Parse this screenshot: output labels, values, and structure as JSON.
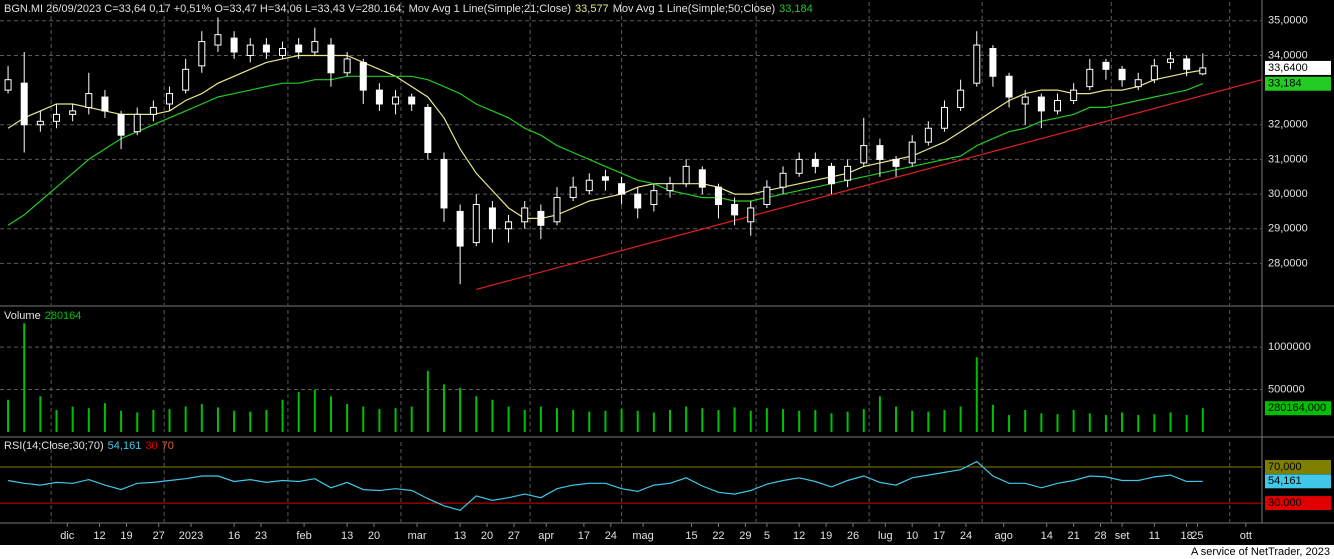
{
  "chart_data": [
    {
      "type": "candlestick",
      "title": "BGN.MI 26/09/2023 C=33,64 0,17 +0,51% O=33,47 H=34,06 L=33,43 V=280.164;",
      "x": [
        0,
        3,
        6,
        9,
        12,
        15,
        18,
        21,
        24,
        27,
        30,
        33,
        36,
        39,
        42,
        45,
        48,
        51,
        54,
        57,
        60,
        63,
        66,
        69,
        72,
        75,
        78,
        81,
        84,
        87,
        90,
        93,
        96,
        99,
        102,
        105,
        108,
        111,
        114,
        117,
        120,
        123,
        126,
        129,
        132,
        135,
        138,
        141,
        144,
        147,
        150,
        153,
        156,
        159,
        162,
        165,
        168,
        171,
        174,
        177,
        180,
        183,
        186,
        189,
        192,
        195,
        198,
        201,
        204,
        207,
        210,
        213,
        216,
        219,
        222
      ],
      "xlim": [
        -1.5,
        233
      ],
      "open": [
        33.0,
        33.2,
        32.0,
        32.1,
        32.3,
        32.5,
        32.8,
        32.3,
        31.8,
        32.3,
        32.6,
        33.0,
        33.7,
        34.3,
        34.5,
        34.0,
        34.3,
        34.0,
        34.3,
        34.1,
        34.3,
        33.5,
        33.8,
        33.0,
        32.6,
        32.8,
        32.5,
        31.0,
        29.5,
        28.6,
        29.6,
        29.0,
        29.2,
        29.5,
        29.2,
        29.9,
        30.1,
        30.5,
        30.3,
        30.0,
        29.7,
        30.1,
        30.3,
        30.7,
        30.2,
        29.7,
        29.2,
        29.7,
        30.2,
        30.6,
        31.0,
        30.8,
        30.4,
        30.9,
        31.4,
        31.0,
        30.9,
        31.5,
        31.9,
        32.5,
        33.2,
        34.2,
        33.4,
        32.6,
        32.8,
        32.4,
        32.7,
        33.1,
        33.8,
        33.6,
        33.1,
        33.3,
        33.8,
        33.9,
        33.47
      ],
      "high": [
        33.7,
        34.1,
        32.4,
        32.6,
        32.6,
        33.5,
        33.0,
        32.4,
        32.5,
        32.7,
        33.1,
        33.9,
        34.7,
        35.1,
        34.7,
        34.5,
        34.5,
        34.4,
        34.5,
        34.8,
        34.5,
        34.1,
        33.9,
        33.2,
        33.0,
        32.9,
        32.6,
        31.2,
        29.7,
        30.0,
        29.8,
        29.4,
        29.8,
        29.7,
        30.2,
        30.5,
        30.6,
        30.7,
        30.5,
        30.2,
        30.3,
        30.5,
        31.0,
        30.8,
        30.3,
        29.9,
        29.8,
        30.4,
        30.8,
        31.2,
        31.2,
        30.9,
        31.0,
        32.2,
        31.6,
        31.1,
        31.7,
        32.1,
        32.7,
        33.3,
        34.7,
        34.3,
        33.5,
        33.0,
        32.9,
        32.9,
        33.2,
        33.9,
        33.9,
        33.7,
        33.5,
        33.9,
        34.1,
        34.0,
        34.06
      ],
      "low": [
        32.9,
        31.2,
        31.8,
        31.9,
        32.1,
        32.3,
        32.2,
        31.3,
        31.7,
        32.1,
        32.4,
        32.9,
        33.5,
        34.1,
        33.9,
        33.8,
        33.9,
        33.9,
        33.9,
        34.0,
        33.1,
        33.4,
        32.6,
        32.4,
        32.3,
        32.4,
        31.0,
        29.2,
        27.4,
        28.5,
        28.6,
        28.6,
        29.0,
        28.7,
        29.1,
        29.8,
        30.0,
        30.1,
        29.7,
        29.3,
        29.5,
        29.9,
        30.2,
        30.0,
        29.3,
        29.1,
        28.8,
        29.6,
        30.0,
        30.5,
        30.6,
        30.0,
        30.2,
        30.8,
        30.5,
        30.5,
        30.8,
        31.4,
        31.8,
        32.4,
        33.1,
        33.1,
        32.5,
        32.0,
        31.9,
        32.3,
        32.6,
        33.0,
        33.3,
        33.1,
        33.0,
        33.2,
        33.6,
        33.4,
        33.43
      ],
      "close": [
        33.3,
        32.0,
        32.1,
        32.3,
        32.4,
        32.9,
        32.4,
        31.7,
        32.3,
        32.5,
        32.9,
        33.6,
        34.4,
        34.6,
        34.1,
        34.3,
        34.1,
        34.2,
        34.1,
        34.4,
        33.5,
        33.9,
        33.0,
        32.6,
        32.8,
        32.6,
        31.2,
        29.6,
        28.5,
        29.7,
        29.0,
        29.2,
        29.6,
        29.1,
        29.9,
        30.2,
        30.4,
        30.4,
        30.0,
        29.6,
        30.1,
        30.3,
        30.8,
        30.2,
        29.7,
        29.4,
        29.6,
        30.2,
        30.6,
        31.0,
        30.8,
        30.3,
        30.8,
        31.4,
        31.0,
        30.8,
        31.5,
        31.9,
        32.5,
        33.0,
        34.3,
        33.4,
        32.8,
        32.8,
        32.4,
        32.7,
        33.0,
        33.6,
        33.6,
        33.3,
        33.3,
        33.7,
        33.9,
        33.6,
        33.64
      ],
      "candle_color": "#ffffff",
      "last_close": {
        "value": 33.64,
        "label": "33,6400"
      },
      "series": [
        {
          "name": "Mov Avg 1 Line(Simple;21;Close)",
          "color": "#e8e88a",
          "values": [
            31.9,
            32.2,
            32.4,
            32.6,
            32.6,
            32.5,
            32.4,
            32.3,
            32.3,
            32.3,
            32.4,
            32.7,
            32.9,
            33.2,
            33.4,
            33.6,
            33.8,
            33.9,
            34.0,
            34.0,
            34.0,
            34.0,
            33.8,
            33.6,
            33.4,
            33.1,
            32.8,
            32.2,
            31.3,
            30.6,
            30.1,
            29.6,
            29.3,
            29.3,
            29.4,
            29.6,
            29.8,
            29.9,
            30.0,
            30.2,
            30.3,
            30.3,
            30.3,
            30.3,
            30.2,
            30.0,
            30.0,
            30.1,
            30.2,
            30.3,
            30.4,
            30.5,
            30.6,
            30.8,
            30.9,
            31.0,
            31.1,
            31.3,
            31.5,
            31.8,
            32.1,
            32.4,
            32.7,
            32.9,
            33.0,
            33.0,
            32.9,
            32.9,
            33.0,
            33.0,
            33.1,
            33.3,
            33.4,
            33.5,
            33.577
          ],
          "last": {
            "value": 33.577,
            "label": "33,577"
          }
        },
        {
          "name": "Mov Avg 1 Line(Simple;50;Close)",
          "color": "#22cc22",
          "values": [
            29.1,
            29.4,
            29.8,
            30.2,
            30.6,
            31.0,
            31.3,
            31.6,
            31.8,
            32.0,
            32.2,
            32.4,
            32.6,
            32.8,
            32.9,
            33.0,
            33.1,
            33.2,
            33.2,
            33.3,
            33.3,
            33.4,
            33.4,
            33.4,
            33.4,
            33.4,
            33.3,
            33.1,
            32.9,
            32.6,
            32.4,
            32.2,
            31.9,
            31.7,
            31.4,
            31.2,
            31.0,
            30.8,
            30.6,
            30.4,
            30.3,
            30.1,
            30.0,
            29.9,
            29.9,
            29.8,
            29.8,
            29.9,
            30.0,
            30.1,
            30.2,
            30.3,
            30.4,
            30.5,
            30.6,
            30.7,
            30.8,
            30.9,
            31.0,
            31.1,
            31.4,
            31.6,
            31.8,
            31.9,
            32.1,
            32.2,
            32.3,
            32.5,
            32.5,
            32.6,
            32.7,
            32.8,
            32.9,
            33.0,
            33.184
          ],
          "last": {
            "value": 33.184,
            "label": "33,184"
          }
        }
      ],
      "trendline": {
        "x": [
          87,
          233
        ],
        "values": [
          27.25,
          33.3
        ],
        "color": "#e02020"
      },
      "ylim": [
        26.8,
        35.6
      ],
      "yticks": [
        {
          "value": 28,
          "label": "28,0000"
        },
        {
          "value": 29,
          "label": "29,0000"
        },
        {
          "value": 30,
          "label": "30,0000"
        },
        {
          "value": 31,
          "label": "31,0000"
        },
        {
          "value": 32,
          "label": "32,0000"
        },
        {
          "value": 34,
          "label": "34,0000"
        },
        {
          "value": 35,
          "label": "35,0000"
        }
      ],
      "grid": true
    },
    {
      "type": "bar",
      "title": "Volume",
      "color": "#00c000",
      "values": [
        380000,
        1280000,
        420000,
        260000,
        300000,
        280000,
        340000,
        250000,
        230000,
        260000,
        270000,
        300000,
        330000,
        290000,
        250000,
        240000,
        260000,
        380000,
        470000,
        500000,
        420000,
        330000,
        300000,
        270000,
        280000,
        300000,
        720000,
        560000,
        520000,
        420000,
        380000,
        300000,
        260000,
        300000,
        280000,
        260000,
        240000,
        250000,
        270000,
        250000,
        230000,
        260000,
        300000,
        280000,
        260000,
        290000,
        250000,
        280000,
        270000,
        250000,
        260000,
        220000,
        240000,
        270000,
        420000,
        300000,
        250000,
        240000,
        260000,
        300000,
        880000,
        320000,
        200000,
        260000,
        220000,
        210000,
        260000,
        220000,
        200000,
        230000,
        200000,
        210000,
        230000,
        200000,
        280164
      ],
      "last": {
        "value": 280164,
        "label": "280164,000",
        "header": "280164"
      },
      "ylim": [
        0,
        1460000
      ],
      "yticks": [
        500000,
        1000000
      ],
      "grid": true
    },
    {
      "type": "line",
      "title": "RSI(14;Close;30;70)",
      "color": "#3fc8e8",
      "values": [
        55,
        52,
        50,
        53,
        52,
        56,
        50,
        45,
        52,
        53,
        55,
        57,
        60,
        60,
        54,
        56,
        53,
        55,
        54,
        57,
        47,
        53,
        45,
        44,
        46,
        44,
        35,
        27,
        22,
        38,
        33,
        36,
        40,
        36,
        46,
        50,
        52,
        52,
        46,
        43,
        50,
        52,
        58,
        49,
        42,
        40,
        44,
        51,
        55,
        58,
        54,
        48,
        55,
        60,
        53,
        50,
        58,
        61,
        64,
        67,
        76,
        60,
        52,
        52,
        47,
        52,
        55,
        60,
        59,
        55,
        55,
        59,
        61,
        54,
        54.161
      ],
      "last": {
        "value": 54.161,
        "label": "54,161"
      },
      "levels": [
        {
          "value": 30,
          "label": "30,000",
          "header": "30",
          "color": "#e00000"
        },
        {
          "value": 70,
          "label": "70,000",
          "header": "70",
          "color": "#808000"
        }
      ],
      "ylim": [
        9,
        100
      ],
      "xticks": [
        {
          "value": 11,
          "label": "dic"
        },
        {
          "value": 17,
          "label": "12"
        },
        {
          "value": 22,
          "label": "19"
        },
        {
          "value": 28,
          "label": "27"
        },
        {
          "value": 34,
          "label": "2023"
        },
        {
          "value": 42,
          "label": "16"
        },
        {
          "value": 47,
          "label": "23"
        },
        {
          "value": 55,
          "label": "feb"
        },
        {
          "value": 63,
          "label": "13"
        },
        {
          "value": 68,
          "label": "20"
        },
        {
          "value": 76,
          "label": "mar"
        },
        {
          "value": 84,
          "label": "13"
        },
        {
          "value": 89,
          "label": "20"
        },
        {
          "value": 94,
          "label": "27"
        },
        {
          "value": 100,
          "label": "apr"
        },
        {
          "value": 107,
          "label": "17"
        },
        {
          "value": 112,
          "label": "24"
        },
        {
          "value": 118,
          "label": "mag"
        },
        {
          "value": 127,
          "label": "15"
        },
        {
          "value": 132,
          "label": "22"
        },
        {
          "value": 137,
          "label": "29"
        },
        {
          "value": 141,
          "label": "5"
        },
        {
          "value": 147,
          "label": "12"
        },
        {
          "value": 152,
          "label": "19"
        },
        {
          "value": 157,
          "label": "26"
        },
        {
          "value": 163,
          "label": "lug"
        },
        {
          "value": 168,
          "label": "10"
        },
        {
          "value": 173,
          "label": "17"
        },
        {
          "value": 178,
          "label": "24"
        },
        {
          "value": 185,
          "label": "ago"
        },
        {
          "value": 193,
          "label": "14"
        },
        {
          "value": 198,
          "label": "21"
        },
        {
          "value": 203,
          "label": "28"
        },
        {
          "value": 207,
          "label": "set"
        },
        {
          "value": 213,
          "label": "11"
        },
        {
          "value": 219,
          "label": "18"
        },
        {
          "value": 221,
          "label": "25"
        },
        {
          "value": 230,
          "label": "ott"
        }
      ],
      "xgrid": [
        8,
        29,
        52,
        73,
        97,
        114,
        139,
        160,
        181,
        205,
        227
      ],
      "grid": true
    }
  ],
  "footer": "A service of NetTrader, 2023"
}
